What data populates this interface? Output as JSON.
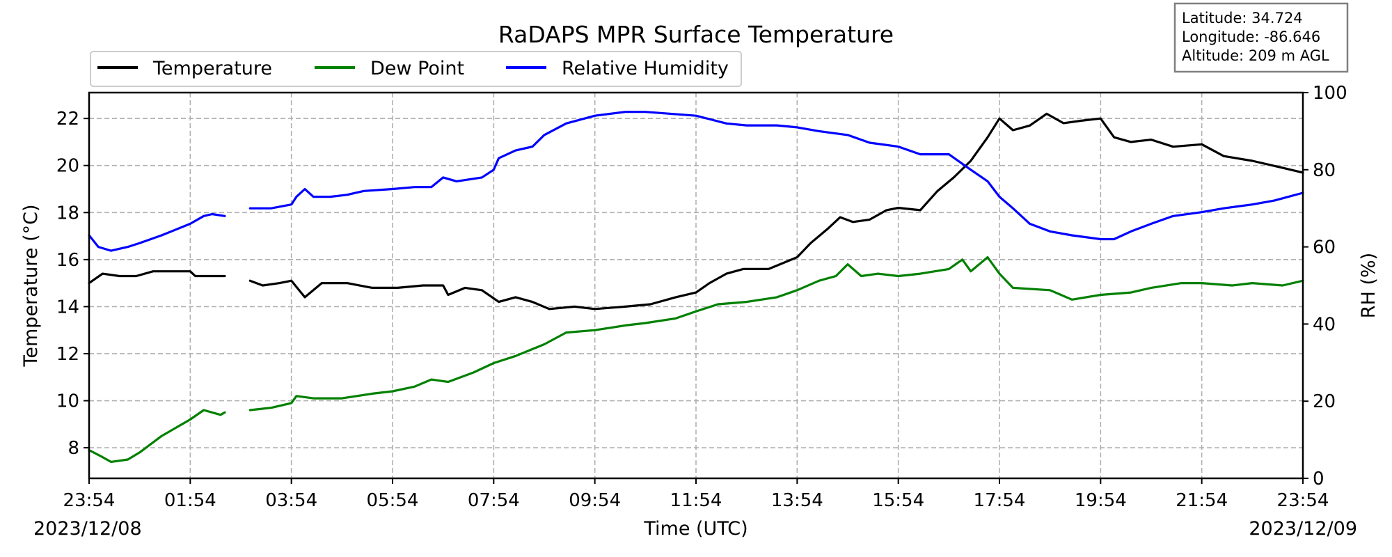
{
  "chart_data": {
    "type": "line",
    "title": "RaDAPS MPR Surface Temperature",
    "xlabel": "Time (UTC)",
    "ylabel": "Temperature ($^\\circ$C)",
    "ylabel_display": "Temperature (°C)",
    "y2label": "RH (%)",
    "x_ticks": [
      "23:54",
      "01:54",
      "03:54",
      "05:54",
      "07:54",
      "09:54",
      "11:54",
      "13:54",
      "15:54",
      "17:54",
      "19:54",
      "21:54",
      "23:54"
    ],
    "start_date": "2023/12/08",
    "end_date": "2023/12/09",
    "ylim": [
      6.7,
      23.1
    ],
    "y_ticks": [
      8,
      10,
      12,
      14,
      16,
      18,
      20,
      22
    ],
    "y2lim": [
      0,
      100
    ],
    "y2_ticks": [
      0,
      20,
      40,
      60,
      80,
      100
    ],
    "grid": true,
    "legend_position": "top-left",
    "info_box": {
      "latitude": "Latitude: 34.724",
      "longitude": "Longitude: -86.646",
      "altitude": "Altitude: 209 m AGL"
    },
    "series": [
      {
        "name": "Temperature",
        "axis": "left",
        "color": "#000000",
        "points": [
          [
            "23:54",
            15.0
          ],
          [
            "00:10",
            15.4
          ],
          [
            "00:30",
            15.3
          ],
          [
            "00:50",
            15.3
          ],
          [
            "01:10",
            15.5
          ],
          [
            "01:30",
            15.5
          ],
          [
            "01:54",
            15.5
          ],
          [
            "02:00",
            15.3
          ],
          [
            "02:20",
            15.3
          ],
          [
            "02:35",
            15.3
          ],
          null,
          [
            "03:05",
            15.1
          ],
          [
            "03:20",
            14.9
          ],
          [
            "03:40",
            15.0
          ],
          [
            "03:54",
            15.1
          ],
          [
            "04:10",
            14.4
          ],
          [
            "04:30",
            15.0
          ],
          [
            "05:00",
            15.0
          ],
          [
            "05:30",
            14.8
          ],
          [
            "06:00",
            14.8
          ],
          [
            "06:30",
            14.9
          ],
          [
            "06:54",
            14.9
          ],
          [
            "07:00",
            14.5
          ],
          [
            "07:20",
            14.8
          ],
          [
            "07:40",
            14.7
          ],
          [
            "08:00",
            14.2
          ],
          [
            "08:20",
            14.4
          ],
          [
            "08:40",
            14.2
          ],
          [
            "09:00",
            13.9
          ],
          [
            "09:30",
            14.0
          ],
          [
            "09:54",
            13.9
          ],
          [
            "10:30",
            14.0
          ],
          [
            "11:00",
            14.1
          ],
          [
            "11:30",
            14.4
          ],
          [
            "11:54",
            14.6
          ],
          [
            "12:10",
            15.0
          ],
          [
            "12:30",
            15.4
          ],
          [
            "12:50",
            15.6
          ],
          [
            "13:20",
            15.6
          ],
          [
            "13:54",
            16.1
          ],
          [
            "14:10",
            16.7
          ],
          [
            "14:30",
            17.3
          ],
          [
            "14:45",
            17.8
          ],
          [
            "15:00",
            17.6
          ],
          [
            "15:20",
            17.7
          ],
          [
            "15:40",
            18.1
          ],
          [
            "15:54",
            18.2
          ],
          [
            "16:20",
            18.1
          ],
          [
            "16:40",
            18.9
          ],
          [
            "17:00",
            19.5
          ],
          [
            "17:20",
            20.2
          ],
          [
            "17:40",
            21.2
          ],
          [
            "17:54",
            22.0
          ],
          [
            "18:10",
            21.5
          ],
          [
            "18:30",
            21.7
          ],
          [
            "18:50",
            22.2
          ],
          [
            "19:10",
            21.8
          ],
          [
            "19:30",
            21.9
          ],
          [
            "19:54",
            22.0
          ],
          [
            "20:10",
            21.2
          ],
          [
            "20:30",
            21.0
          ],
          [
            "20:54",
            21.1
          ],
          [
            "21:20",
            20.8
          ],
          [
            "21:54",
            20.9
          ],
          [
            "22:20",
            20.4
          ],
          [
            "22:54",
            20.2
          ],
          [
            "23:30",
            19.9
          ],
          [
            "23:54",
            19.7
          ]
        ]
      },
      {
        "name": "Dew Point",
        "axis": "left",
        "color": "#008000",
        "points": [
          [
            "23:54",
            7.9
          ],
          [
            "00:10",
            7.6
          ],
          [
            "00:20",
            7.4
          ],
          [
            "00:40",
            7.5
          ],
          [
            "00:54",
            7.8
          ],
          [
            "01:20",
            8.5
          ],
          [
            "01:54",
            9.2
          ],
          [
            "02:10",
            9.6
          ],
          [
            "02:30",
            9.4
          ],
          [
            "02:35",
            9.5
          ],
          null,
          [
            "03:05",
            9.6
          ],
          [
            "03:30",
            9.7
          ],
          [
            "03:54",
            9.9
          ],
          [
            "04:00",
            10.2
          ],
          [
            "04:20",
            10.1
          ],
          [
            "04:54",
            10.1
          ],
          [
            "05:30",
            10.3
          ],
          [
            "05:54",
            10.4
          ],
          [
            "06:20",
            10.6
          ],
          [
            "06:40",
            10.9
          ],
          [
            "07:00",
            10.8
          ],
          [
            "07:30",
            11.2
          ],
          [
            "07:54",
            11.6
          ],
          [
            "08:20",
            11.9
          ],
          [
            "08:54",
            12.4
          ],
          [
            "09:20",
            12.9
          ],
          [
            "09:54",
            13.0
          ],
          [
            "10:30",
            13.2
          ],
          [
            "10:54",
            13.3
          ],
          [
            "11:30",
            13.5
          ],
          [
            "11:54",
            13.8
          ],
          [
            "12:20",
            14.1
          ],
          [
            "12:54",
            14.2
          ],
          [
            "13:30",
            14.4
          ],
          [
            "13:54",
            14.7
          ],
          [
            "14:20",
            15.1
          ],
          [
            "14:40",
            15.3
          ],
          [
            "14:54",
            15.8
          ],
          [
            "15:10",
            15.3
          ],
          [
            "15:30",
            15.4
          ],
          [
            "15:54",
            15.3
          ],
          [
            "16:20",
            15.4
          ],
          [
            "16:54",
            15.6
          ],
          [
            "17:10",
            16.0
          ],
          [
            "17:20",
            15.5
          ],
          [
            "17:40",
            16.1
          ],
          [
            "17:54",
            15.4
          ],
          [
            "18:10",
            14.8
          ],
          [
            "18:54",
            14.7
          ],
          [
            "19:20",
            14.3
          ],
          [
            "19:54",
            14.5
          ],
          [
            "20:30",
            14.6
          ],
          [
            "20:54",
            14.8
          ],
          [
            "21:30",
            15.0
          ],
          [
            "21:54",
            15.0
          ],
          [
            "22:30",
            14.9
          ],
          [
            "22:54",
            15.0
          ],
          [
            "23:30",
            14.9
          ],
          [
            "23:54",
            15.1
          ]
        ]
      },
      {
        "name": "Relative Humidity",
        "axis": "right",
        "color": "#0000ff",
        "points": [
          [
            "23:54",
            63
          ],
          [
            "00:05",
            60
          ],
          [
            "00:20",
            59
          ],
          [
            "00:40",
            60
          ],
          [
            "00:54",
            61
          ],
          [
            "01:20",
            63
          ],
          [
            "01:54",
            66
          ],
          [
            "02:10",
            68
          ],
          [
            "02:20",
            68.5
          ],
          [
            "02:35",
            68
          ],
          null,
          [
            "03:05",
            70
          ],
          [
            "03:30",
            70
          ],
          [
            "03:54",
            71
          ],
          [
            "04:00",
            73
          ],
          [
            "04:10",
            75
          ],
          [
            "04:20",
            73
          ],
          [
            "04:40",
            73
          ],
          [
            "05:00",
            73.5
          ],
          [
            "05:20",
            74.5
          ],
          [
            "05:54",
            75
          ],
          [
            "06:20",
            75.5
          ],
          [
            "06:40",
            75.5
          ],
          [
            "06:54",
            78
          ],
          [
            "07:10",
            77
          ],
          [
            "07:40",
            78
          ],
          [
            "07:54",
            80
          ],
          [
            "08:00",
            83
          ],
          [
            "08:20",
            85
          ],
          [
            "08:40",
            86
          ],
          [
            "08:54",
            89
          ],
          [
            "09:20",
            92
          ],
          [
            "09:54",
            94
          ],
          [
            "10:30",
            95
          ],
          [
            "10:54",
            95
          ],
          [
            "11:54",
            94
          ],
          [
            "12:30",
            92
          ],
          [
            "12:54",
            91.5
          ],
          [
            "13:30",
            91.5
          ],
          [
            "13:54",
            91
          ],
          [
            "14:20",
            90
          ],
          [
            "14:54",
            89
          ],
          [
            "15:20",
            87
          ],
          [
            "15:54",
            86
          ],
          [
            "16:20",
            84
          ],
          [
            "16:54",
            84
          ],
          [
            "17:20",
            80
          ],
          [
            "17:40",
            77
          ],
          [
            "17:54",
            73
          ],
          [
            "18:10",
            70
          ],
          [
            "18:30",
            66
          ],
          [
            "18:54",
            64
          ],
          [
            "19:20",
            63
          ],
          [
            "19:54",
            62
          ],
          [
            "20:10",
            62
          ],
          [
            "20:30",
            64
          ],
          [
            "20:54",
            66
          ],
          [
            "21:20",
            68
          ],
          [
            "21:54",
            69
          ],
          [
            "22:20",
            70
          ],
          [
            "22:54",
            71
          ],
          [
            "23:20",
            72
          ],
          [
            "23:54",
            74
          ]
        ]
      }
    ]
  }
}
